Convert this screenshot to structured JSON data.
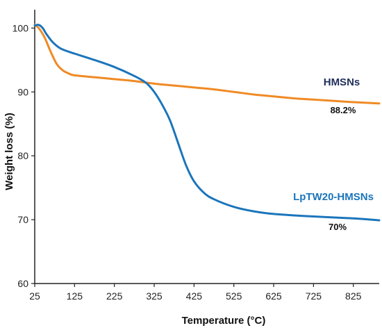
{
  "chart_data": {
    "type": "line",
    "xlabel": "Temperature (°C)",
    "ylabel": "Weight loss (%)",
    "xlim": [
      25,
      890
    ],
    "ylim": [
      60,
      102
    ],
    "xticks": [
      25,
      125,
      225,
      325,
      425,
      525,
      625,
      725,
      825
    ],
    "yticks": [
      60,
      70,
      80,
      90,
      100
    ],
    "grid": false,
    "series": [
      {
        "name": "HMSNs",
        "color": "#F08A24",
        "points": [
          [
            25,
            100.5
          ],
          [
            35,
            100.0
          ],
          [
            50,
            98.5
          ],
          [
            65,
            96.3
          ],
          [
            80,
            94.4
          ],
          [
            95,
            93.4
          ],
          [
            110,
            92.9
          ],
          [
            125,
            92.6
          ],
          [
            175,
            92.3
          ],
          [
            225,
            92.0
          ],
          [
            275,
            91.7
          ],
          [
            325,
            91.3
          ],
          [
            375,
            91.0
          ],
          [
            425,
            90.7
          ],
          [
            475,
            90.4
          ],
          [
            525,
            90.0
          ],
          [
            575,
            89.6
          ],
          [
            625,
            89.3
          ],
          [
            675,
            89.0
          ],
          [
            725,
            88.8
          ],
          [
            775,
            88.6
          ],
          [
            825,
            88.4
          ],
          [
            890,
            88.2
          ]
        ],
        "label_value": "88.2%"
      },
      {
        "name": "LpTW20-HMSNs",
        "color": "#1B75BB",
        "points": [
          [
            25,
            100.4
          ],
          [
            35,
            100.5
          ],
          [
            45,
            100.0
          ],
          [
            55,
            99.0
          ],
          [
            70,
            97.8
          ],
          [
            90,
            96.8
          ],
          [
            125,
            96.0
          ],
          [
            175,
            95.0
          ],
          [
            225,
            93.9
          ],
          [
            275,
            92.5
          ],
          [
            305,
            91.4
          ],
          [
            325,
            90.0
          ],
          [
            345,
            88.0
          ],
          [
            365,
            85.5
          ],
          [
            385,
            82.0
          ],
          [
            405,
            78.5
          ],
          [
            425,
            76.0
          ],
          [
            450,
            74.2
          ],
          [
            475,
            73.2
          ],
          [
            525,
            72.0
          ],
          [
            575,
            71.3
          ],
          [
            625,
            70.9
          ],
          [
            725,
            70.5
          ],
          [
            825,
            70.2
          ],
          [
            890,
            69.9
          ]
        ],
        "label_value": "70%"
      }
    ]
  }
}
